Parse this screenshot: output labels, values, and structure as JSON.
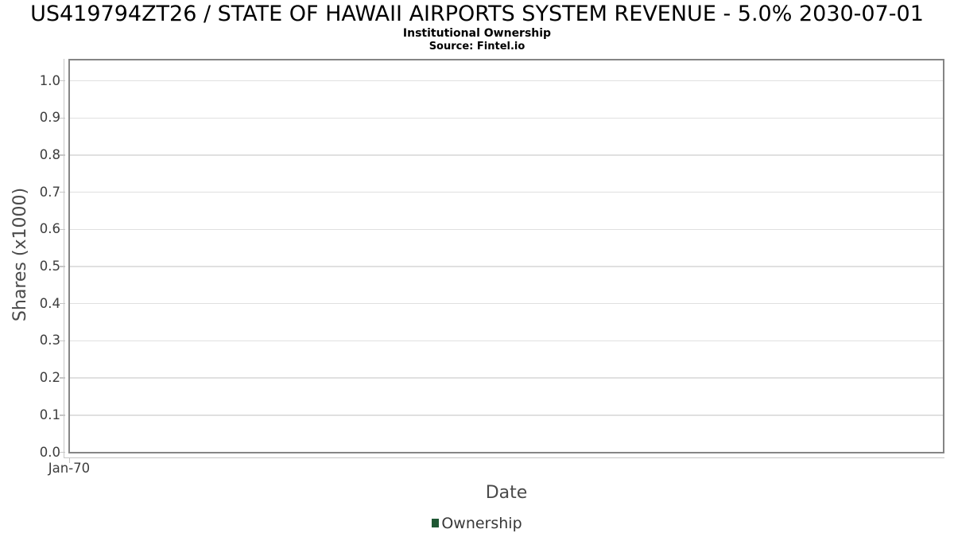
{
  "chart_data": {
    "type": "line",
    "title": "US419794ZT26 / STATE OF HAWAII AIRPORTS SYSTEM REVENUE - 5.0% 2030-07-01",
    "subtitle": "Institutional Ownership",
    "source": "Source: Fintel.io",
    "xlabel": "Date",
    "ylabel": "Shares (x1000)",
    "x_tick_labels": [
      "Jan-70"
    ],
    "y_ticks": [
      0,
      0.1,
      0.2,
      0.3,
      0.4,
      0.5,
      0.6,
      0.7,
      0.8,
      0.9,
      1.0
    ],
    "y_tick_labels": [
      "0.0",
      "0.1",
      "0.2",
      "0.3",
      "0.4",
      "0.5",
      "0.6",
      "0.7",
      "0.8",
      "0.9",
      "1.0"
    ],
    "ylim": [
      0,
      1.06
    ],
    "grid": true,
    "legend_position": "bottom",
    "legend": [
      {
        "label": "Ownership",
        "color": "#1f5733"
      }
    ],
    "series": [
      {
        "name": "Ownership",
        "x": [],
        "y": []
      }
    ],
    "note": "empty chart - no data points plotted"
  },
  "colors": {
    "background": "#ffffff",
    "title": "#000000",
    "plot_border": "#858585",
    "gridline": "#e0e0e0",
    "axis_line": "#c6c6c6",
    "tick_label": "#3d3d3d",
    "axis_title": "#4a4a4a",
    "legend_text": "#383838",
    "series_ownership": "#1f5733"
  }
}
